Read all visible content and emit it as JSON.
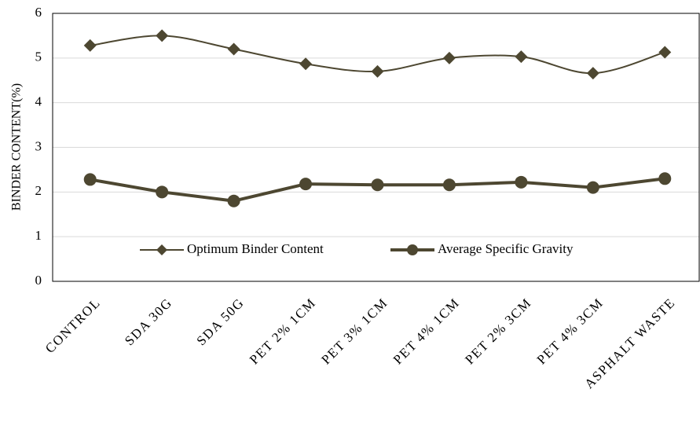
{
  "chart_data": {
    "type": "line",
    "y_label": "BINDER CONTENT(%)",
    "categories": [
      "CONTROL",
      "SDA 30G",
      "SDA 50G",
      "PET 2% 1CM",
      "PET 3% 1CM",
      "PET 4% 1CM",
      "PET 2% 3CM",
      "PET 4% 3CM",
      "ASPHALT WASTE"
    ],
    "series": [
      {
        "name": "Optimum Binder Content",
        "color": "#4d4731",
        "marker": "diamond",
        "smooth": true,
        "values": [
          5.28,
          5.5,
          5.2,
          4.87,
          4.7,
          5.0,
          5.03,
          4.66,
          5.13
        ]
      },
      {
        "name": "Average Specific Gravity",
        "color": "#4d4731",
        "marker": "circle",
        "smooth": false,
        "values": [
          2.28,
          2.0,
          1.8,
          2.18,
          2.16,
          2.16,
          2.22,
          2.1,
          2.3
        ]
      }
    ],
    "ylim": [
      0,
      6
    ],
    "yticks": [
      0,
      1,
      2,
      3,
      4,
      5,
      6
    ],
    "grid": true
  }
}
